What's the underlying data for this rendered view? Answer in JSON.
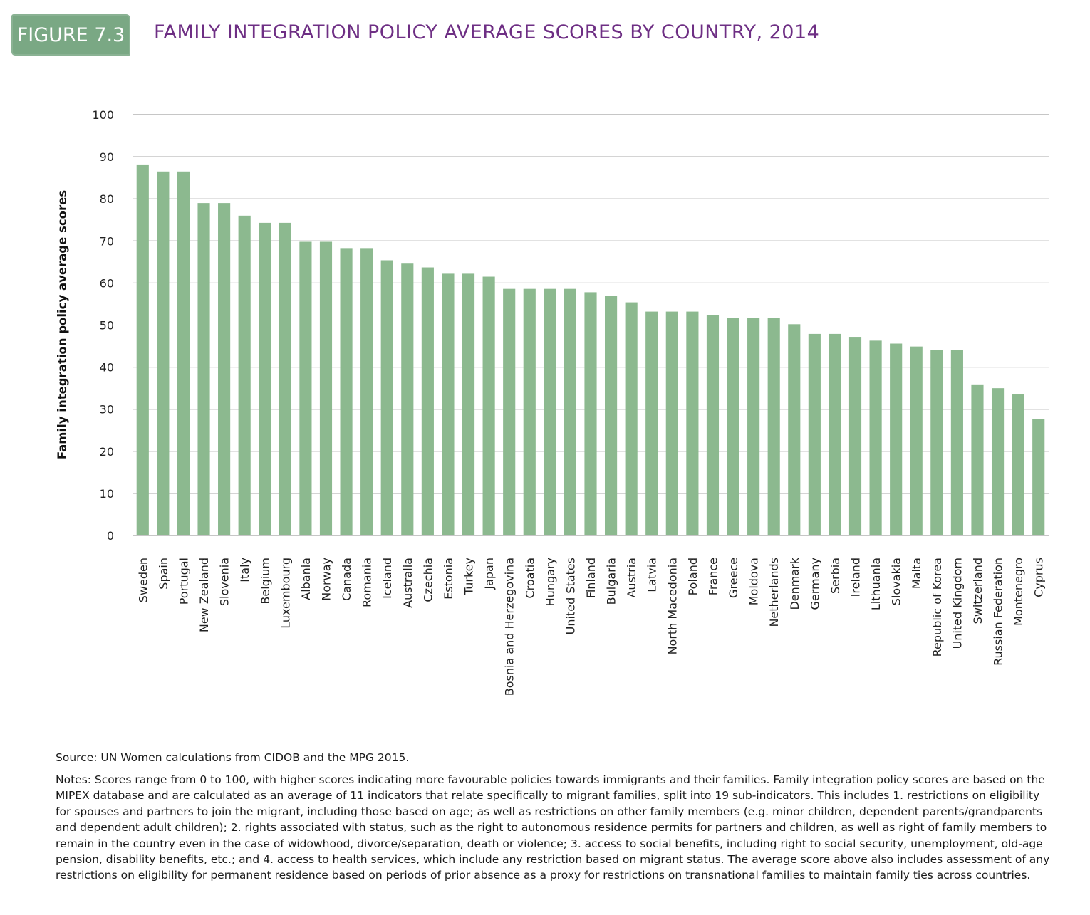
{
  "figure_label": "FIGURE 7.3",
  "title": "FAMILY INTEGRATION POLICY AVERAGE SCORES BY COUNTRY, 2014",
  "source": "Source: UN Women calculations from CIDOB and the MPG 2015.",
  "notes": "Notes: Scores range from 0 to 100, with higher scores indicating more favourable policies towards immigrants and their families. Family integration policy scores are based on the MIPEX database and are calculated as an average of 11 indicators that relate specifically to migrant families, split into 19 sub-indicators. This includes 1. restrictions on eligibility for spouses and partners to join the migrant, including those based on age; as well as restrictions on other family members (e.g. minor children, dependent parents/grandparents and dependent adult children); 2. rights associated with status, such as the right to autonomous residence permits for partners and children, as well as right of family members to remain in the country even in the case of widowhood, divorce/separation, death or violence; 3. access to social benefits, including right to social security, unemployment, old-age pension, disability benefits, etc.; and 4. access to health services, which include any restriction based on migrant status. The average score above also includes assessment of any restrictions on eligibility for permanent residence based on periods of prior absence as a proxy for restrictions on transnational families to maintain family ties across countries.",
  "colors": {
    "bar": "#8cb98f",
    "badge": "#7aa884",
    "title": "#6e2f84",
    "grid": "#8c8c8c"
  },
  "chart_data": {
    "type": "bar",
    "title": "FAMILY INTEGRATION POLICY AVERAGE SCORES BY COUNTRY, 2014",
    "xlabel": "",
    "ylabel": "Family integration policy average scores",
    "ylim": [
      0,
      100
    ],
    "yticks": [
      0,
      10,
      20,
      30,
      40,
      50,
      60,
      70,
      80,
      90,
      100
    ],
    "grid": true,
    "legend": "none",
    "categories": [
      "Sweden",
      "Spain",
      "Portugal",
      "New Zealand",
      "Slovenia",
      "Italy",
      "Belgium",
      "Luxembourg",
      "Albania",
      "Norway",
      "Canada",
      "Romania",
      "Iceland",
      "Australia",
      "Czechia",
      "Estonia",
      "Turkey",
      "Japan",
      "Bosnia and Herzegovina",
      "Croatia",
      "Hungary",
      "United States",
      "Finland",
      "Bulgaria",
      "Austria",
      "Latvia",
      "North Macedonia",
      "Poland",
      "France",
      "Greece",
      "Moldova",
      "Netherlands",
      "Denmark",
      "Germany",
      "Serbia",
      "Ireland",
      "Lithuania",
      "Slovakia",
      "Malta",
      "Republic of Korea",
      "United Kingdom",
      "Switzerland",
      "Russian Federation",
      "Montenegro",
      "Cyprus"
    ],
    "values": [
      88,
      86.5,
      86.5,
      79,
      79,
      76,
      74.3,
      74.3,
      69.8,
      69.8,
      68.3,
      68.3,
      65.4,
      64.6,
      63.7,
      62.2,
      62.2,
      61.5,
      58.6,
      58.6,
      58.6,
      58.6,
      57.8,
      57,
      55.4,
      53.2,
      53.2,
      53.2,
      52.4,
      51.7,
      51.7,
      51.7,
      50.2,
      47.9,
      47.9,
      47.2,
      46.3,
      45.6,
      44.9,
      44.1,
      44.1,
      35.9,
      35,
      33.5,
      27.6
    ]
  }
}
